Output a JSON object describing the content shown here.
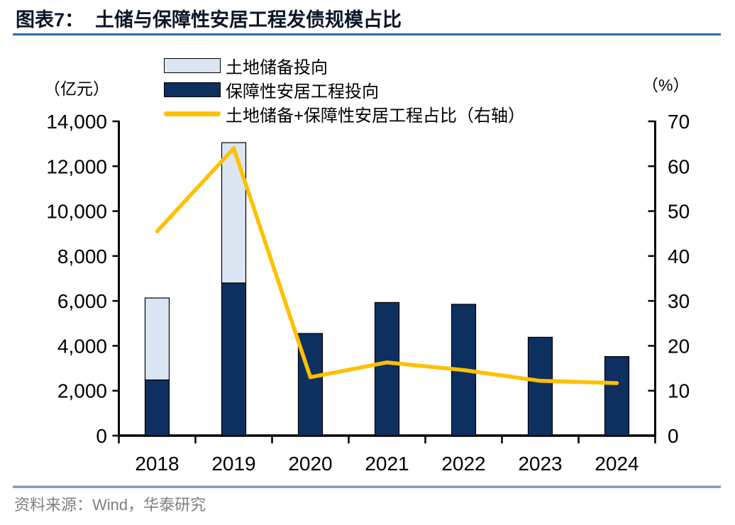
{
  "header": {
    "figure_label": "图表7：",
    "title": "土储与保障性安居工程发债规模占比"
  },
  "source": {
    "text": "资料来源：Wind，华泰研究"
  },
  "colors": {
    "navy": "#0d3060",
    "light_blue": "#dce6f2",
    "gold": "#ffc000",
    "title_rule": "#2e6ca4",
    "source_rule": "#7f9fc1",
    "source_text": "#7f7f7f",
    "axis": "#000000"
  },
  "chart_data": {
    "type": "bar",
    "subtype": "stacked-bar-with-line",
    "categories": [
      "2018",
      "2019",
      "2020",
      "2021",
      "2022",
      "2023",
      "2024"
    ],
    "series": [
      {
        "name": "土地储备投向",
        "type": "bar",
        "stack_index": 1,
        "color": "#dce6f2",
        "axis": "left",
        "values": [
          3650,
          6250,
          0,
          0,
          0,
          0,
          0
        ]
      },
      {
        "name": "保障性安居工程投向",
        "type": "bar",
        "stack_index": 0,
        "color": "#0d3060",
        "axis": "left",
        "values": [
          2480,
          6800,
          4550,
          5930,
          5850,
          4380,
          3520
        ]
      },
      {
        "name": "土地储备+保障性安居工程占比（右轴）",
        "type": "line",
        "color": "#ffc000",
        "axis": "right",
        "values": [
          45.5,
          64,
          13,
          16.3,
          14.6,
          12.2,
          11.7
        ]
      }
    ],
    "left_axis": {
      "unit": "（亿元）",
      "min": 0,
      "max": 14000,
      "step": 2000
    },
    "right_axis": {
      "unit": "（%）",
      "min": 0,
      "max": 70,
      "step": 10
    },
    "legend_position": "top-left",
    "grid": false
  }
}
